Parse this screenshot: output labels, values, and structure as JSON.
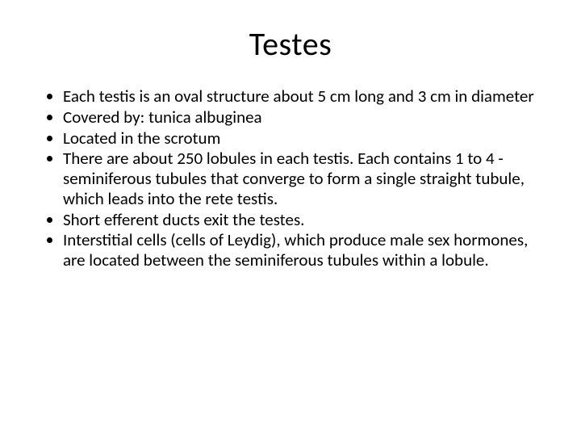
{
  "slide": {
    "title": "Testes",
    "title_fontsize": 40,
    "title_color": "#000000",
    "body_fontsize": 21,
    "body_color": "#000000",
    "background_color": "#ffffff",
    "bullet_style": "disc",
    "bullets": [
      "Each testis is an oval structure about 5 cm long and 3 cm in diameter",
      "Covered by: tunica albuginea",
      "Located in the scrotum",
      "There are about 250 lobules in each testis. Each contains 1 to 4 -seminiferous tubules that converge to form a single straight tubule, which leads into the rete testis.",
      "Short efferent ducts exit the testes.",
      "Interstitial cells (cells of Leydig), which produce male sex hormones, are located between the seminiferous tubules within a lobule."
    ]
  }
}
